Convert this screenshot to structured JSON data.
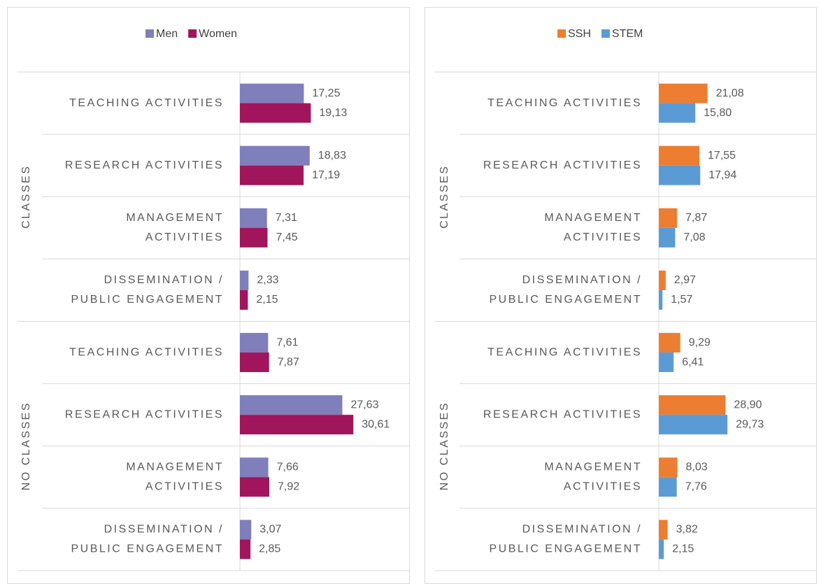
{
  "chart_data": [
    {
      "type": "bar",
      "orientation": "horizontal",
      "groups": [
        "CLASSES",
        "NO CLASSES"
      ],
      "categories": [
        "TEACHING ACTIVITIES",
        "RESEARCH ACTIVITIES",
        "MANAGEMENT\nACTIVITIES",
        "DISSEMINATION /\nPUBLIC ENGAGEMENT",
        "TEACHING ACTIVITIES",
        "RESEARCH ACTIVITIES",
        "MANAGEMENT\nACTIVITIES",
        "DISSEMINATION /\nPUBLIC ENGAGEMENT"
      ],
      "legend": "top",
      "series": [
        {
          "name": "Men",
          "color": "#7f7fbb",
          "values": [
            17.25,
            18.83,
            7.31,
            2.33,
            7.61,
            27.63,
            7.66,
            3.07
          ],
          "value_labels": [
            "17,25",
            "18,83",
            "7,31",
            "2,33",
            "7,61",
            "27,63",
            "7,66",
            "3,07"
          ]
        },
        {
          "name": "Women",
          "color": "#a0155c",
          "values": [
            19.13,
            17.19,
            7.45,
            2.15,
            7.87,
            30.61,
            7.92,
            2.85
          ],
          "value_labels": [
            "19,13",
            "17,19",
            "7,45",
            "2,15",
            "7,87",
            "30,61",
            "7,92",
            "2,85"
          ]
        }
      ]
    },
    {
      "type": "bar",
      "orientation": "horizontal",
      "groups": [
        "CLASSES",
        "NO CLASSES"
      ],
      "categories": [
        "TEACHING ACTIVITIES",
        "RESEARCH ACTIVITIES",
        "MANAGEMENT\nACTIVITIES",
        "DISSEMINATION /\nPUBLIC ENGAGEMENT",
        "TEACHING ACTIVITIES",
        "RESEARCH ACTIVITIES",
        "MANAGEMENT\nACTIVITIES",
        "DISSEMINATION /\nPUBLIC ENGAGEMENT"
      ],
      "legend": "top",
      "series": [
        {
          "name": "SSH",
          "color": "#ed7d31",
          "values": [
            21.08,
            17.55,
            7.87,
            2.97,
            9.29,
            28.9,
            8.03,
            3.82
          ],
          "value_labels": [
            "21,08",
            "17,55",
            "7,87",
            "2,97",
            "9,29",
            "28,90",
            "8,03",
            "3,82"
          ]
        },
        {
          "name": "STEM",
          "color": "#5b9bd5",
          "values": [
            15.8,
            17.94,
            7.08,
            1.57,
            6.41,
            29.73,
            7.76,
            2.15
          ],
          "value_labels": [
            "15,80",
            "17,94",
            "7,08",
            "1,57",
            "6,41",
            "29,73",
            "7,76",
            "2,15"
          ]
        }
      ]
    }
  ]
}
